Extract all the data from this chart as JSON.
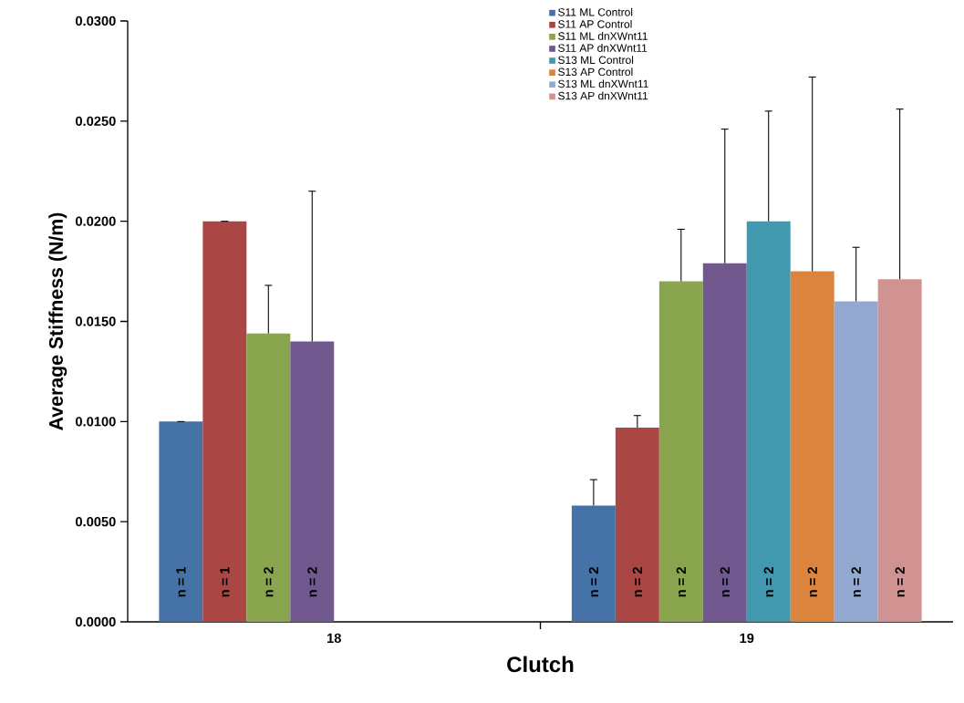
{
  "chart_data": {
    "type": "bar",
    "xlabel": "Clutch",
    "ylabel": "Average Stiffness (N/m)",
    "categories": [
      "18",
      "19"
    ],
    "ylim": [
      0,
      0.03
    ],
    "yticks": [
      {
        "value": 0,
        "label": "0.0000"
      },
      {
        "value": 0.005,
        "label": "0.0050"
      },
      {
        "value": 0.01,
        "label": "0.0100"
      },
      {
        "value": 0.015,
        "label": "0.0150"
      },
      {
        "value": 0.02,
        "label": "0.0200"
      },
      {
        "value": 0.025,
        "label": "0.0250"
      },
      {
        "value": 0.03,
        "label": "0.0300"
      }
    ],
    "grid": false,
    "legend": "top",
    "annotations": [
      "n = 1",
      "n = 2",
      "n = 1",
      "n = 2",
      "n = 2",
      "n = 2",
      "n = 2",
      "n = 2",
      "n = 2",
      "n = 2",
      "n = 2",
      "n = 2"
    ],
    "series": [
      {
        "name": "S11 ML Control",
        "color": "#4572a7",
        "values": [
          0.01,
          0.0058
        ],
        "errors": [
          [
            0.01,
            0.01
          ],
          [
            0.0058,
            0.0071
          ]
        ]
      },
      {
        "name": "S11 AP Control",
        "color": "#aa4643",
        "values": [
          0.02,
          0.0097
        ],
        "errors": [
          [
            0.02,
            0.02
          ],
          [
            0.0097,
            0.0103
          ]
        ]
      },
      {
        "name": "S11 ML dnXWnt11",
        "color": "#89a54e",
        "values": [
          0.0144,
          0.017
        ],
        "errors": [
          [
            0.0144,
            0.0168
          ],
          [
            0.017,
            0.0196
          ]
        ]
      },
      {
        "name": "S11 AP dnXWnt11",
        "color": "#71588f",
        "values": [
          0.014,
          0.0179
        ],
        "errors": [
          [
            0.014,
            0.0215
          ],
          [
            0.0179,
            0.0246
          ]
        ]
      },
      {
        "name": "S13 ML Control",
        "color": "#4198af",
        "values": [
          null,
          0.02
        ],
        "errors": [
          null,
          [
            0.02,
            0.0255
          ]
        ]
      },
      {
        "name": "S13 AP Control",
        "color": "#db843d",
        "values": [
          null,
          0.0175
        ],
        "errors": [
          null,
          [
            0.0175,
            0.0272
          ]
        ]
      },
      {
        "name": "S13 ML dnXWnt11",
        "color": "#93a9cf",
        "values": [
          null,
          0.016
        ],
        "errors": [
          null,
          [
            0.016,
            0.0187
          ]
        ]
      },
      {
        "name": "S13 AP dnXWnt11",
        "color": "#d19392",
        "values": [
          null,
          0.0171
        ],
        "errors": [
          null,
          [
            0.0171,
            0.0256
          ]
        ]
      }
    ]
  }
}
